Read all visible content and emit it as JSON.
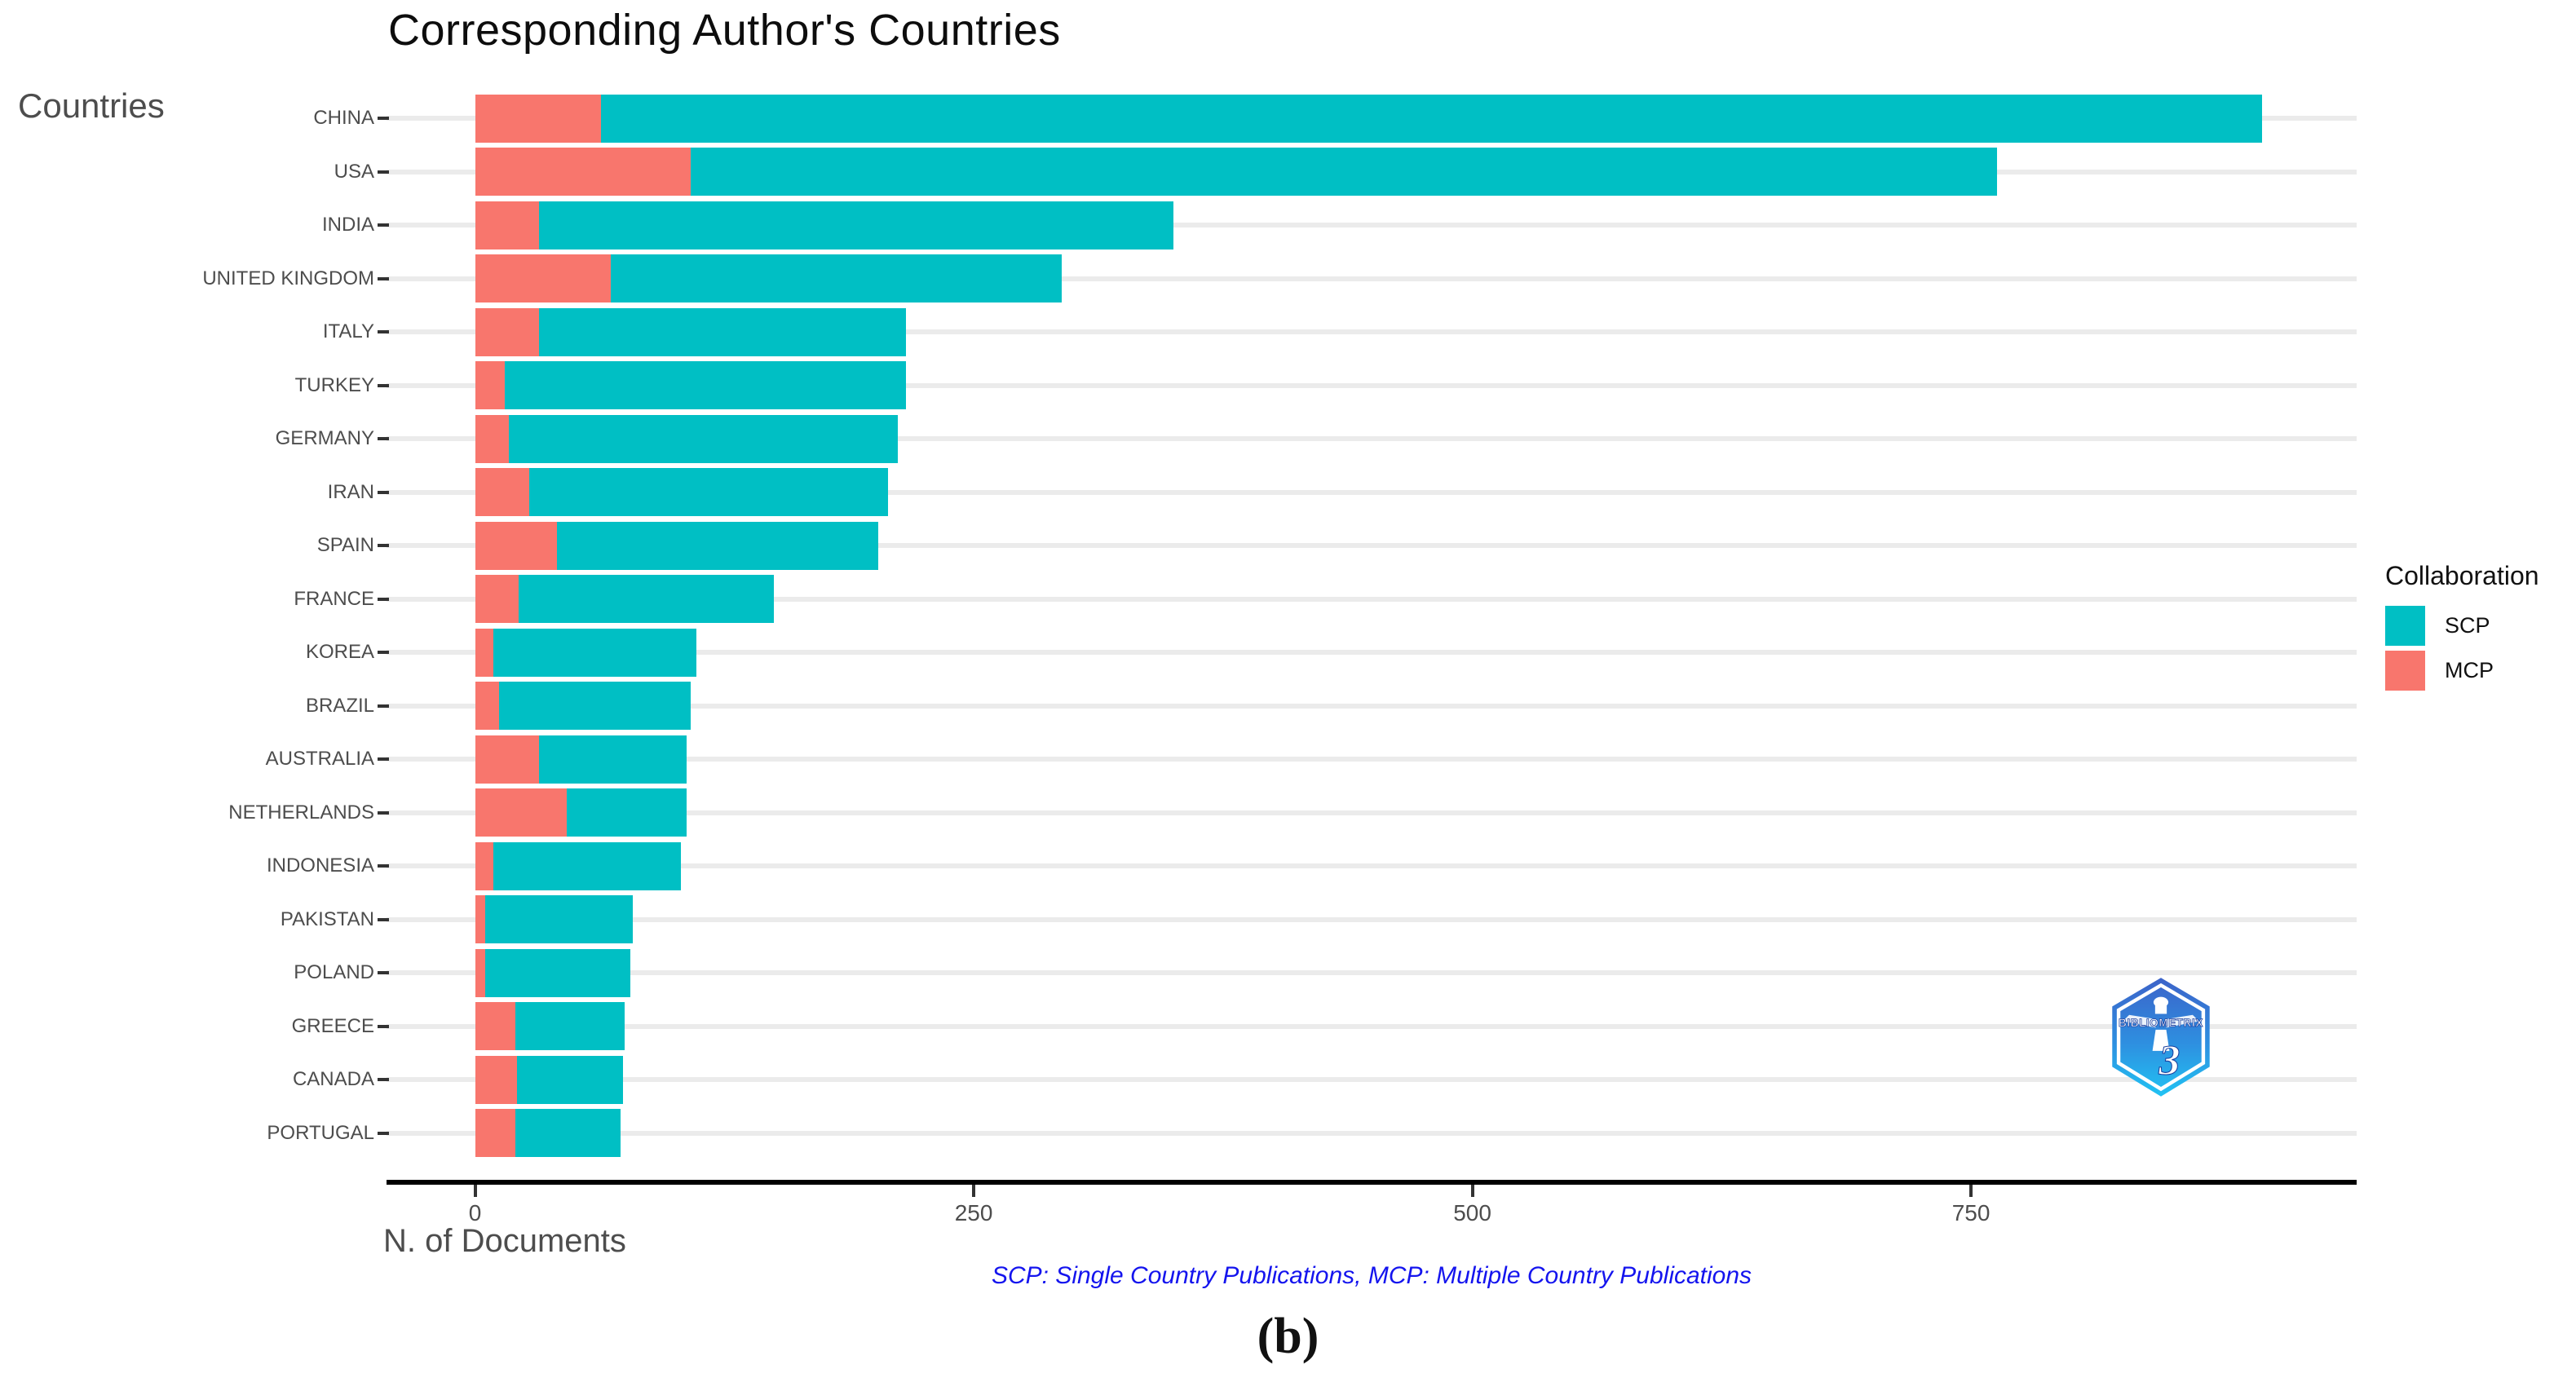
{
  "figure": {
    "title": "Corresponding Author's Countries",
    "y_axis_title": "Countries",
    "x_axis_title": "N. of Documents",
    "caption": "SCP: Single Country Publications, MCP: Multiple Country Publications",
    "panel_label": "(b)",
    "logo": {
      "text": "BIBLIOMETRIX",
      "numeral": "3"
    }
  },
  "legend": {
    "title": "Collaboration",
    "items": [
      {
        "label": "SCP",
        "color": "#00BFC4"
      },
      {
        "label": "MCP",
        "color": "#F8766D"
      }
    ]
  },
  "colors": {
    "scp": "#00BFC4",
    "mcp": "#F8766D",
    "gridline": "#ebebeb",
    "axis_text": "#4d4d4d",
    "caption_blue": "#1414ee"
  },
  "chart_data": {
    "type": "bar",
    "orientation": "horizontal",
    "stacked": true,
    "title": "Corresponding Author's Countries",
    "xlabel": "N. of Documents",
    "ylabel": "Countries",
    "categories": [
      "CHINA",
      "USA",
      "INDIA",
      "UNITED KINGDOM",
      "ITALY",
      "TURKEY",
      "GERMANY",
      "IRAN",
      "SPAIN",
      "FRANCE",
      "KOREA",
      "BRAZIL",
      "AUSTRALIA",
      "NETHERLANDS",
      "INDONESIA",
      "PAKISTAN",
      "POLAND",
      "GREECE",
      "CANADA",
      "PORTUGAL"
    ],
    "series": [
      {
        "name": "MCP",
        "color": "#F8766D",
        "stack_position": "base",
        "values": [
          63,
          108,
          32,
          68,
          32,
          15,
          17,
          27,
          41,
          22,
          9,
          12,
          32,
          46,
          9,
          5,
          5,
          20,
          21,
          20
        ]
      },
      {
        "name": "SCP",
        "color": "#00BFC4",
        "stack_position": "top",
        "values": [
          833,
          655,
          318,
          226,
          184,
          201,
          195,
          180,
          161,
          128,
          102,
          96,
          74,
          60,
          94,
          74,
          73,
          55,
          53,
          53
        ]
      }
    ],
    "totals": [
      896,
      763,
      350,
      294,
      216,
      216,
      212,
      207,
      202,
      150,
      111,
      108,
      106,
      106,
      103,
      79,
      78,
      75,
      74,
      73
    ],
    "x_ticks": [
      0,
      250,
      500,
      750
    ],
    "xlim": [
      0,
      940
    ],
    "grid": "horizontal-major-only",
    "legend_position": "right",
    "legend_title": "Collaboration"
  }
}
